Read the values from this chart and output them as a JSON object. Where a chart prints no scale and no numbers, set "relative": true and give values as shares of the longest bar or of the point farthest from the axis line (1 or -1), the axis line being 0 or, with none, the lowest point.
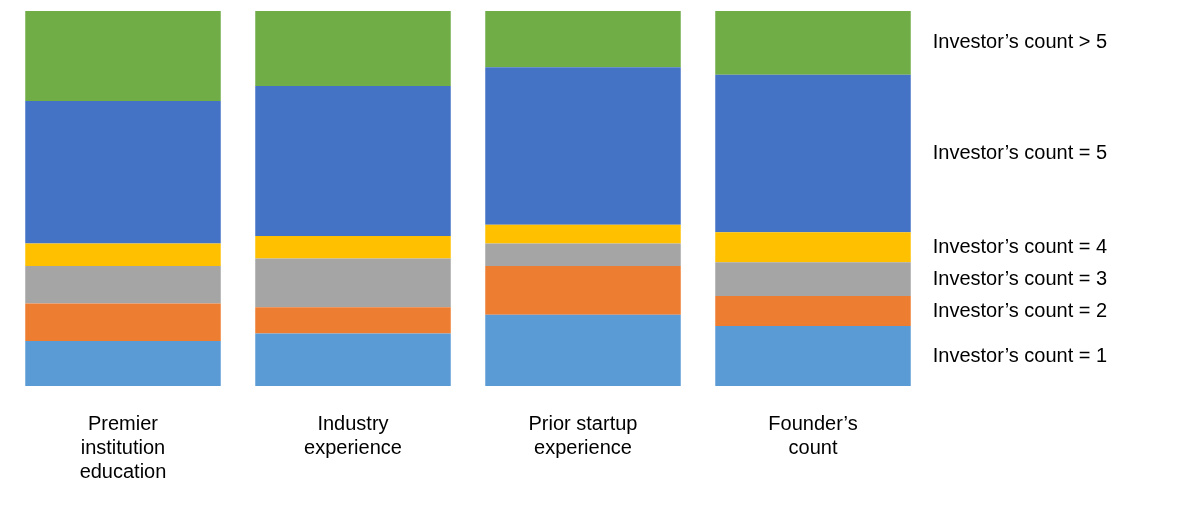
{
  "chart_data": {
    "type": "bar",
    "stacked": true,
    "relative": true,
    "categories": [
      "Premier institution education",
      "Industry experience",
      "Prior startup experience",
      "Founder’s count"
    ],
    "series": [
      {
        "name": "Investor’s count = 1",
        "color": "#5b9bd5",
        "values": [
          0.12,
          0.14,
          0.19,
          0.16
        ]
      },
      {
        "name": "Investor’s count = 2",
        "color": "#ed7d31",
        "values": [
          0.1,
          0.07,
          0.13,
          0.08
        ]
      },
      {
        "name": "Investor’s count = 3",
        "color": "#a5a5a5",
        "values": [
          0.1,
          0.13,
          0.06,
          0.09
        ]
      },
      {
        "name": "Investor’s count = 4",
        "color": "#ffc000",
        "values": [
          0.06,
          0.06,
          0.05,
          0.08
        ]
      },
      {
        "name": "Investor’s count = 5",
        "color": "#4472c4",
        "values": [
          0.38,
          0.4,
          0.42,
          0.42
        ]
      },
      {
        "name": "Investor’s count > 5",
        "color": "#70ad47",
        "values": [
          0.24,
          0.2,
          0.15,
          0.17
        ]
      }
    ]
  }
}
